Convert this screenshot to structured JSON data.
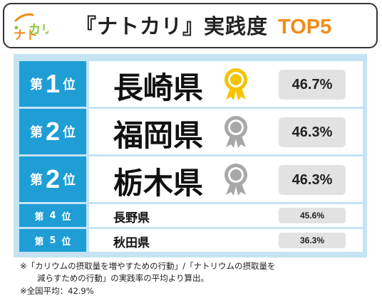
{
  "header": {
    "logo_text": "ナトカリ",
    "title": "『ナトカリ』実践度",
    "title_accent": "TOP5"
  },
  "colors": {
    "accent_orange": "#f08c1a",
    "rank_blue": "#1e9ed4",
    "panel_bg": "#c5e3f3",
    "gold": "#f4c400",
    "silver": "#a8a8a8",
    "pct_bg": "#e2e2e2"
  },
  "ranking": [
    {
      "rank_prefix": "第",
      "rank_num": "1",
      "rank_suffix": "位",
      "prefecture": "長崎県",
      "medal": "gold-medal-icon",
      "percent": "46.7%"
    },
    {
      "rank_prefix": "第",
      "rank_num": "2",
      "rank_suffix": "位",
      "prefecture": "福岡県",
      "medal": "silver-medal-icon",
      "percent": "46.3%"
    },
    {
      "rank_prefix": "第",
      "rank_num": "2",
      "rank_suffix": "位",
      "prefecture": "栃木県",
      "medal": "silver-medal-icon",
      "percent": "46.3%"
    },
    {
      "rank_prefix": "第",
      "rank_num": "4",
      "rank_suffix": "位",
      "prefecture": "長野県",
      "medal": "",
      "percent": "45.6%"
    },
    {
      "rank_prefix": "第",
      "rank_num": "5",
      "rank_suffix": "位",
      "prefecture": "秋田県",
      "medal": "",
      "percent": "36.3%"
    }
  ],
  "notes": {
    "line1": "※「カリウムの摂取量を増やすための行動」/「ナトリウムの摂取量を",
    "line2": "減らすための行動」の実践率の平均より算出。",
    "line3": "※全国平均：42.9%"
  }
}
